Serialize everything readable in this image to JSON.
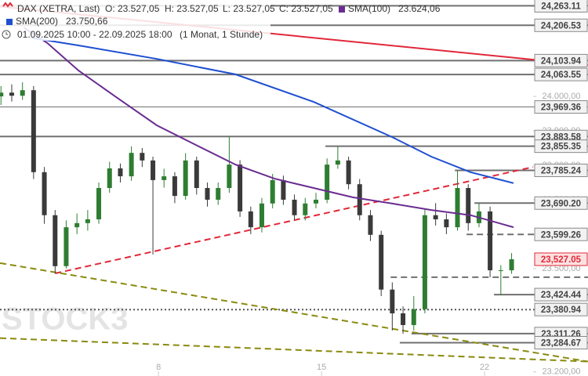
{
  "chart_data": {
    "type": "candlestick",
    "header": {
      "instrument": "DAX (XETRA, Last)",
      "ohlc": [
        "O: 23.527,05",
        "H: 23.527,05",
        "L: 23.527,05",
        "C: 23.527,05"
      ],
      "period": "01.09.2025 10:00 - 22.09.2025 18:00",
      "resolution": "(1 Monat, 1 Stunde)"
    },
    "watermark": "STOCK3",
    "xlim": [
      0.14,
      16.49
    ],
    "xticks": [
      {
        "value": 5,
        "label": "8"
      },
      {
        "value": 10,
        "label": "15"
      },
      {
        "value": 15,
        "label": "22"
      }
    ],
    "ylim": [
      23188,
      24280
    ],
    "yticks": [
      {
        "value": 24000,
        "label": "24.000,00"
      },
      {
        "value": 23900,
        "label": "23.900,00"
      },
      {
        "value": 23800,
        "label": "23.800,00"
      },
      {
        "value": 23700,
        "label": "23.700,00"
      },
      {
        "value": 23500,
        "label": "23.500,00"
      },
      {
        "value": 23200,
        "label": "23.200,00"
      }
    ],
    "up_color": "#2e7d32",
    "down_color": "#3a3a3a",
    "candles": {
      "x": [
        0.17,
        0.5,
        0.83,
        1.17,
        1.5,
        1.83,
        2.17,
        2.5,
        2.83,
        3.17,
        3.5,
        3.83,
        4.17,
        4.5,
        4.83,
        5.17,
        5.5,
        5.83,
        6.17,
        6.5,
        6.83,
        7.17,
        7.5,
        7.83,
        8.17,
        8.5,
        8.83,
        9.17,
        9.5,
        9.83,
        10.17,
        10.5,
        10.83,
        11.17,
        11.5,
        11.83,
        12.17,
        12.5,
        12.83,
        13.17,
        13.5,
        13.83,
        14.17,
        14.5,
        14.83,
        15.17,
        15.5,
        15.83
      ],
      "open": [
        24000,
        24011,
        24002,
        24018,
        23780,
        23655,
        23507,
        23620,
        23632,
        23643,
        23734,
        23791,
        23768,
        23836,
        23814,
        23757,
        23768,
        23711,
        23814,
        23734,
        23700,
        23734,
        23802,
        23666,
        23620,
        23689,
        23757,
        23700,
        23655,
        23689,
        23700,
        23802,
        23814,
        23745,
        23655,
        23598,
        23439,
        23370,
        23336,
        23382,
        23655,
        23643,
        23620,
        23734,
        23632,
        23666,
        23495,
        23495
      ],
      "high": [
        24030,
        24035,
        24041,
        24030,
        23795,
        23670,
        23640,
        23660,
        23670,
        23750,
        23810,
        23805,
        23855,
        23850,
        23825,
        23790,
        23780,
        23835,
        23825,
        23750,
        23750,
        23883,
        23815,
        23680,
        23705,
        23775,
        23770,
        23715,
        23705,
        23720,
        23820,
        23855,
        23825,
        23760,
        23670,
        23610,
        23460,
        23390,
        23420,
        23675,
        23690,
        23660,
        23785,
        23745,
        23690,
        23680,
        23510,
        23545
      ],
      "low": [
        23975,
        23985,
        23990,
        23760,
        23630,
        23486,
        23500,
        23600,
        23610,
        23630,
        23720,
        23750,
        23755,
        23795,
        23541,
        23735,
        23690,
        23700,
        23715,
        23680,
        23685,
        23720,
        23650,
        23600,
        23605,
        23675,
        23685,
        23640,
        23640,
        23675,
        23690,
        23790,
        23730,
        23640,
        23580,
        23420,
        23320,
        23311,
        23320,
        23370,
        23625,
        23600,
        23610,
        23610,
        23620,
        23475,
        23424,
        23485
      ],
      "close": [
        24011,
        24002,
        24018,
        23780,
        23655,
        23507,
        23620,
        23632,
        23643,
        23734,
        23791,
        23768,
        23836,
        23814,
        23757,
        23768,
        23711,
        23814,
        23734,
        23700,
        23734,
        23802,
        23666,
        23620,
        23689,
        23757,
        23700,
        23655,
        23689,
        23700,
        23802,
        23814,
        23745,
        23655,
        23598,
        23439,
        23370,
        23336,
        23382,
        23655,
        23643,
        23620,
        23734,
        23632,
        23666,
        23495,
        23495,
        23527.05
      ]
    },
    "series": [
      {
        "name": "SMA(100)",
        "legend_value": "23.624,06",
        "color": "#6a2c91",
        "x": [
          0.87,
          1.59,
          2.55,
          3.75,
          4.95,
          6.15,
          7.36,
          8.56,
          9.76,
          10.96,
          12.16,
          13.37,
          14.57,
          15.89
        ],
        "values": [
          24200,
          24155,
          24075,
          23995,
          23916,
          23859,
          23802,
          23761,
          23734,
          23707,
          23689,
          23670,
          23655,
          23620
        ]
      },
      {
        "name": "SMA(200)",
        "legend_value": "23.750,66",
        "color": "#1f4fd1",
        "x": [
          1.11,
          2.55,
          4.95,
          7.36,
          9.76,
          12.16,
          13.37,
          14.57,
          15.89
        ],
        "values": [
          24170,
          24148,
          24109,
          24064,
          23984,
          23882,
          23825,
          23780,
          23748
        ]
      }
    ],
    "trendlines": [
      {
        "color": "#e0283a",
        "style": "solid",
        "x": [
          0.14,
          18.17
        ],
        "values": [
          24261,
          24091
        ]
      },
      {
        "color": "#e0283a",
        "style": "dashed",
        "x": [
          1.83,
          16.49
        ],
        "values": [
          23486,
          23795
        ]
      },
      {
        "color": "#8a8a10",
        "style": "dashed",
        "x": [
          0.14,
          18.17
        ],
        "values": [
          23516,
          23230
        ]
      },
      {
        "color": "#8a8a10",
        "style": "dashed",
        "x": [
          0.14,
          18.17
        ],
        "values": [
          23298,
          23230
        ]
      }
    ],
    "levels": [
      {
        "value": 24263.11,
        "label": "24,263.11",
        "from": 0.14,
        "style": "solid"
      },
      {
        "value": 24206.53,
        "label": "24,206.53",
        "from": 0.14,
        "style": "solid"
      },
      {
        "value": 24103.94,
        "label": "24,103.94",
        "from": 0.14,
        "style": "solid"
      },
      {
        "value": 24063.55,
        "label": "24,063.55",
        "from": 0.14,
        "style": "solid"
      },
      {
        "value": 23969.36,
        "label": "23,969.36",
        "from": 0.14,
        "style": "thin"
      },
      {
        "value": 23883.58,
        "label": "23,883.58",
        "from": 0.14,
        "style": "solid"
      },
      {
        "value": 23855.35,
        "label": "23,855.35",
        "from": 10.12,
        "style": "solid"
      },
      {
        "value": 23785.24,
        "label": "23,785.24",
        "from": 14.09,
        "style": "solid"
      },
      {
        "value": 23690.2,
        "label": "23,690.20",
        "from": 14.69,
        "style": "solid"
      },
      {
        "value": 23599.26,
        "label": "23,599.26",
        "from": 14.45,
        "style": "dashed"
      },
      {
        "value": 23475,
        "from": 12.12,
        "style": "dashed"
      },
      {
        "value": 23424.44,
        "label": "23,424.44",
        "from": 15.29,
        "style": "solid"
      },
      {
        "value": 23380.94,
        "label": "23,380.94",
        "from": 0.14,
        "style": "dotted"
      },
      {
        "value": 23311.26,
        "label": "23,311.26",
        "from": 12.76,
        "style": "solid"
      },
      {
        "value": 23284.67,
        "label": "23,284.67",
        "from": 12.4,
        "style": "solid"
      }
    ],
    "last_price": {
      "value": 23527.05,
      "label": "23,527.05",
      "color": "#e0283a"
    }
  }
}
